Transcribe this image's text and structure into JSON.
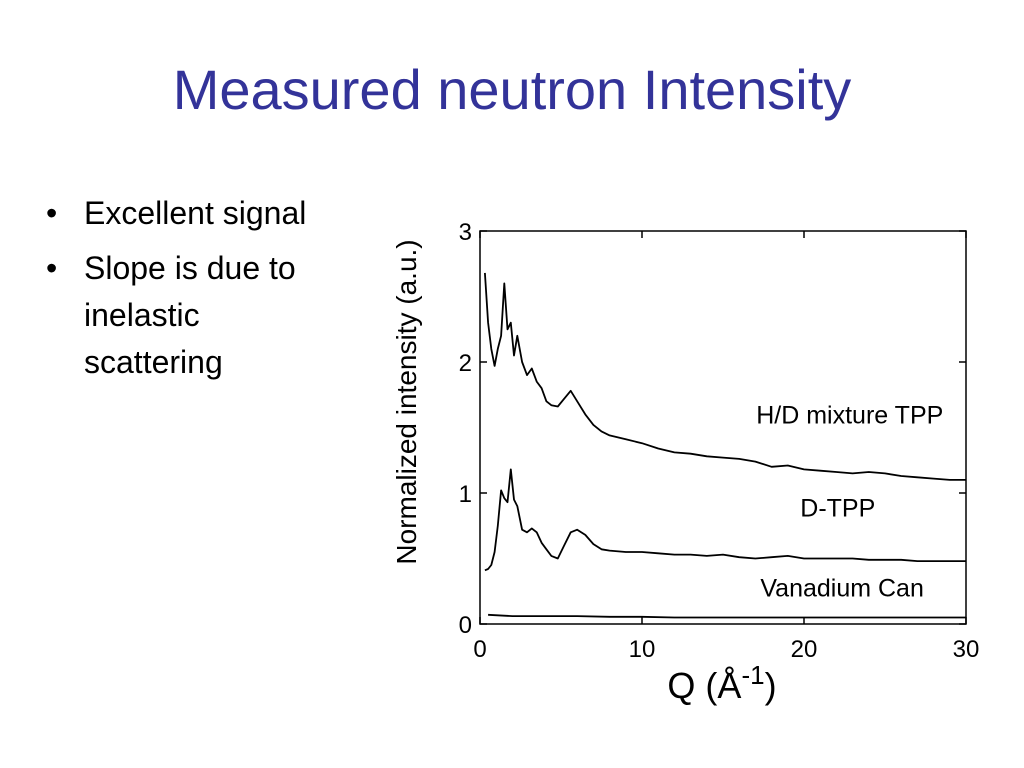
{
  "slide": {
    "title": "Measured neutron Intensity",
    "bullets": [
      {
        "text": "Excellent signal"
      },
      {
        "text": "Slope is due to inelastic scattering"
      }
    ]
  },
  "chart_data": {
    "type": "line",
    "title": "",
    "xlabel": "Q (Å",
    "xlabel_sup": "-1",
    "xlabel_close": ")",
    "ylabel": "Normalized intensity (a.u.)",
    "xlim": [
      0,
      30
    ],
    "ylim": [
      0,
      3
    ],
    "x_ticks": [
      0,
      10,
      20,
      30
    ],
    "y_ticks": [
      0,
      1,
      2,
      3
    ],
    "grid": false,
    "legend": "none (inline curve labels)",
    "series": [
      {
        "name": "H/D mixture TPP",
        "x": [
          0.3,
          0.5,
          0.7,
          0.9,
          1.1,
          1.3,
          1.5,
          1.7,
          1.9,
          2.1,
          2.3,
          2.6,
          2.9,
          3.2,
          3.5,
          3.8,
          4.1,
          4.4,
          4.8,
          5.2,
          5.6,
          6.0,
          6.5,
          7.0,
          7.5,
          8.0,
          9.0,
          10,
          11,
          12,
          13,
          14,
          15,
          16,
          17,
          18,
          19,
          20,
          21,
          22,
          23,
          24,
          25,
          26,
          27,
          28,
          29,
          30
        ],
        "y": [
          2.68,
          2.3,
          2.1,
          1.97,
          2.1,
          2.2,
          2.6,
          2.25,
          2.3,
          2.05,
          2.2,
          2.0,
          1.9,
          1.95,
          1.85,
          1.8,
          1.7,
          1.67,
          1.66,
          1.72,
          1.78,
          1.7,
          1.6,
          1.52,
          1.47,
          1.44,
          1.41,
          1.38,
          1.34,
          1.31,
          1.3,
          1.28,
          1.27,
          1.26,
          1.24,
          1.2,
          1.21,
          1.18,
          1.17,
          1.16,
          1.15,
          1.16,
          1.15,
          1.13,
          1.12,
          1.11,
          1.1,
          1.1
        ]
      },
      {
        "name": "D-TPP",
        "x": [
          0.3,
          0.5,
          0.7,
          0.9,
          1.1,
          1.3,
          1.5,
          1.7,
          1.9,
          2.1,
          2.3,
          2.6,
          2.9,
          3.2,
          3.5,
          3.8,
          4.1,
          4.4,
          4.8,
          5.2,
          5.6,
          6.0,
          6.5,
          7.0,
          7.5,
          8.0,
          9.0,
          10,
          11,
          12,
          13,
          14,
          15,
          16,
          17,
          18,
          19,
          20,
          21,
          22,
          23,
          24,
          25,
          26,
          27,
          28,
          29,
          30
        ],
        "y": [
          0.41,
          0.42,
          0.45,
          0.55,
          0.75,
          1.02,
          0.96,
          0.93,
          1.18,
          0.95,
          0.9,
          0.72,
          0.7,
          0.73,
          0.7,
          0.62,
          0.57,
          0.52,
          0.5,
          0.6,
          0.7,
          0.72,
          0.68,
          0.61,
          0.57,
          0.56,
          0.55,
          0.55,
          0.54,
          0.53,
          0.53,
          0.52,
          0.53,
          0.51,
          0.5,
          0.51,
          0.52,
          0.5,
          0.5,
          0.5,
          0.5,
          0.49,
          0.49,
          0.49,
          0.48,
          0.48,
          0.48,
          0.48
        ]
      },
      {
        "name": "Vanadium Can",
        "x": [
          0.5,
          2,
          4,
          6,
          8,
          10,
          12,
          14,
          16,
          18,
          20,
          22,
          24,
          26,
          28,
          30
        ],
        "y": [
          0.07,
          0.06,
          0.06,
          0.06,
          0.055,
          0.055,
          0.05,
          0.05,
          0.05,
          0.05,
          0.05,
          0.05,
          0.05,
          0.05,
          0.05,
          0.05
        ]
      }
    ]
  }
}
